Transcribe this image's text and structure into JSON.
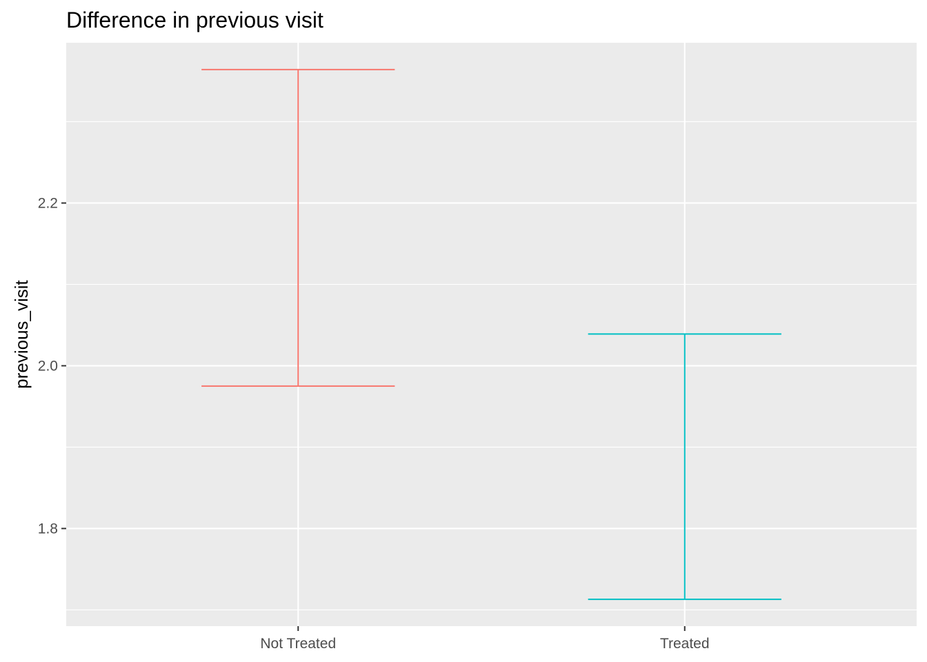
{
  "chart_data": {
    "type": "errorbar",
    "title": "Difference in previous visit",
    "xlabel": "",
    "ylabel": "previous_visit",
    "categories": [
      "Not Treated",
      "Treated"
    ],
    "series": [
      {
        "category": "Not Treated",
        "ymin": 1.975,
        "ymax": 2.364,
        "color": "#F8766D"
      },
      {
        "category": "Treated",
        "ymin": 1.713,
        "ymax": 2.039,
        "color": "#00BFC4"
      }
    ],
    "ylim": [
      1.68,
      2.397
    ],
    "yticks": [
      1.8,
      2.0,
      2.2
    ],
    "ytick_labels": [
      "1.8",
      "2.0",
      "2.2"
    ],
    "grid": true,
    "panel_color": "#EBEBEB",
    "grid_color": "#FFFFFF",
    "axis_tick_color": "#333333"
  }
}
